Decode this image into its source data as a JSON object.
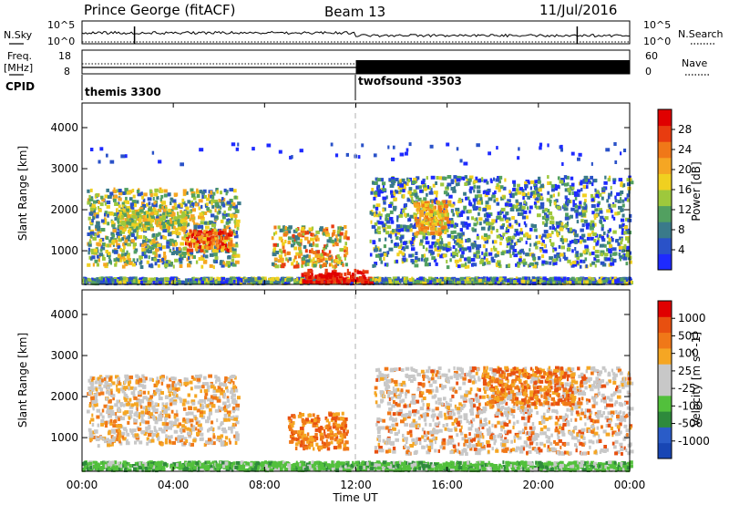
{
  "header": {
    "station": "Prince George (fitACF)",
    "beam": "Beam 13",
    "date": "11/Jul/2016"
  },
  "panels": {
    "nsky": {
      "left_label": "N.Sky",
      "right_label": "N.Search",
      "left_ticks": [
        "10^5",
        "10^0"
      ],
      "right_ticks": [
        "10^5",
        "10^0"
      ]
    },
    "freq": {
      "left_label_1": "Freq.",
      "left_label_2": "[MHz]",
      "left_ticks": [
        "18",
        "8"
      ],
      "right_label": "Nave",
      "right_ticks": [
        "60",
        "0"
      ]
    },
    "cpid": {
      "label": "CPID",
      "modes": [
        "themis 3300",
        "twofsound -3503"
      ]
    }
  },
  "x_axis": {
    "label": "Time UT",
    "ticks": [
      "00:00",
      "04:00",
      "08:00",
      "12:00",
      "16:00",
      "20:00",
      "00:00"
    ]
  },
  "chart_data": [
    {
      "type": "heatmap",
      "name": "power",
      "ylabel": "Slant Range [km]",
      "yticks": [
        "1000",
        "2000",
        "3000",
        "4000"
      ],
      "ylim": [
        180,
        4600
      ],
      "xlim": [
        0,
        24
      ],
      "colorbar": {
        "label": "Power [dB]",
        "ticks": [
          "4",
          "8",
          "12",
          "16",
          "20",
          "24",
          "28"
        ],
        "colors": [
          "#1e2aff",
          "#2a52c8",
          "#3a7a8a",
          "#52a060",
          "#9ec83c",
          "#f0d020",
          "#f5a623",
          "#f07818",
          "#e83c10",
          "#e00000"
        ]
      },
      "regions": [
        {
          "t": [
            0.2,
            6.8
          ],
          "r": [
            500,
            2600
          ],
          "level": "mixed"
        },
        {
          "t": [
            8.3,
            11.5
          ],
          "r": [
            700,
            1600
          ],
          "level": "mixed"
        },
        {
          "t": [
            9.5,
            12.4
          ],
          "r": [
            200,
            500
          ],
          "level": "high"
        },
        {
          "t": [
            13.0,
            24.0
          ],
          "r": [
            700,
            2800
          ],
          "level": "mixed"
        },
        {
          "t": [
            0.0,
            24.0
          ],
          "r": [
            200,
            350
          ],
          "level": "mixed"
        }
      ]
    },
    {
      "type": "heatmap",
      "name": "velocity",
      "ylabel": "Slant Range [km]",
      "yticks": [
        "1000",
        "2000",
        "3000",
        "4000"
      ],
      "ylim": [
        180,
        4600
      ],
      "xlim": [
        0,
        24
      ],
      "colorbar": {
        "label": "Velocity [m s^-1]",
        "ticks": [
          "1000",
          "500",
          "100",
          "25",
          "-25",
          "-100",
          "-500",
          "-1000"
        ],
        "colors": [
          "#1846b4",
          "#2a5cc8",
          "#2e8a3c",
          "#52c03c",
          "#c8c8c8",
          "#c8c8c8",
          "#f5a623",
          "#f07818",
          "#e85010",
          "#e00000"
        ]
      },
      "regions": [
        {
          "t": [
            0.2,
            6.8
          ],
          "r": [
            500,
            2600
          ],
          "level": "near-zero / negative"
        },
        {
          "t": [
            9.0,
            11.5
          ],
          "r": [
            700,
            1600
          ],
          "level": "negative"
        },
        {
          "t": [
            0.0,
            24.0
          ],
          "r": [
            200,
            400
          ],
          "level": "positive"
        },
        {
          "t": [
            13.5,
            24.0
          ],
          "r": [
            700,
            2800
          ],
          "level": "mixed"
        }
      ]
    }
  ]
}
